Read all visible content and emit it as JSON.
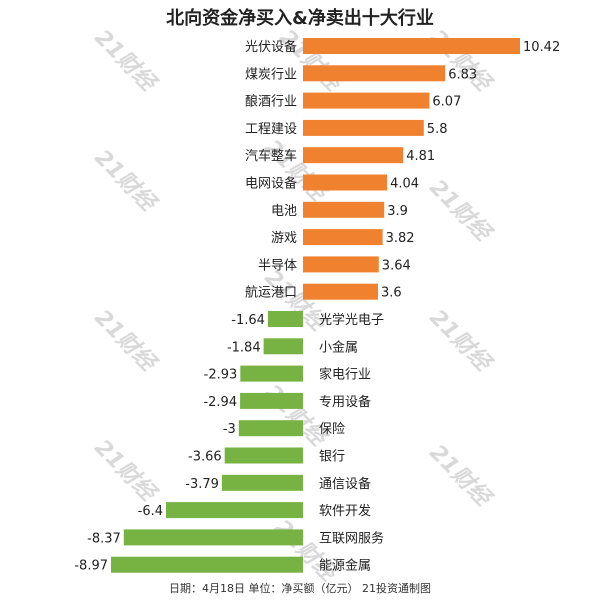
{
  "title": "北向资金净买入&净卖出十大行业",
  "footnote": "日期：4月18日 单位：净买额（亿元） 21投资通制图",
  "watermark_text": "21财经",
  "colors": {
    "positive": "#f0812e",
    "negative": "#76b343",
    "watermark": "#d9d9d9"
  },
  "chart_data": {
    "type": "bar",
    "orientation": "horizontal",
    "categories": [
      "光伏设备",
      "煤炭行业",
      "酿酒行业",
      "工程建设",
      "汽车整车",
      "电网设备",
      "电池",
      "游戏",
      "半导体",
      "航运港口",
      "光学光电子",
      "小金属",
      "家电行业",
      "专用设备",
      "保险",
      "银行",
      "通信设备",
      "软件开发",
      "互联网服务",
      "能源金属"
    ],
    "values": [
      10.42,
      6.83,
      6.07,
      5.8,
      4.81,
      4.04,
      3.9,
      3.82,
      3.64,
      3.6,
      -1.64,
      -1.84,
      -2.93,
      -2.94,
      -3,
      -3.66,
      -3.79,
      -6.4,
      -8.37,
      -8.97
    ],
    "value_labels": [
      "10.42",
      "6.83",
      "6.07",
      "5.8",
      "4.81",
      "4.04",
      "3.9",
      "3.82",
      "3.64",
      "3.6",
      "-1.64",
      "-1.84",
      "-2.93",
      "-2.94",
      "-3",
      "-3.66",
      "-3.79",
      "-6.4",
      "-8.37",
      "-8.97"
    ],
    "xlim": [
      -8.97,
      10.42
    ],
    "grid": false,
    "legend": "none"
  }
}
